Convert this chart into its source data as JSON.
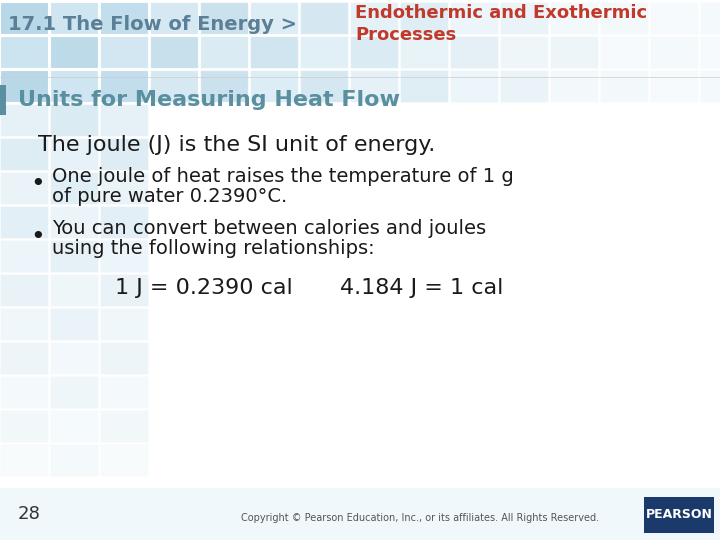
{
  "bg_color": "#ffffff",
  "header_grid_color": "#b8d8e8",
  "header_grid_color2": "#cce4f0",
  "header_left_text": "17.1 The Flow of Energy >",
  "header_left_color": "#5a7f96",
  "header_right_line1": "Endothermic and Exothermic",
  "header_right_line2": "Processes",
  "header_right_color": "#c0392b",
  "section_title": "Units for Measuring Heat Flow",
  "section_title_color": "#5a8fa0",
  "main_text": "The joule (J) is the SI unit of energy.",
  "main_text_color": "#1a1a1a",
  "bullet1_line1": "One joule of heat raises the temperature of 1 g",
  "bullet1_line2": "of pure water 0.2390°C.",
  "bullet2_line1": "You can convert between calories and joules",
  "bullet2_line2": "using the following relationships:",
  "formula1": "1 J = 0.2390 cal",
  "formula2": "4.184 J = 1 cal",
  "bullet_color": "#1a1a1a",
  "page_num": "28",
  "copyright_text": "Copyright © Pearson Education, Inc., or its affiliates. All Rights Reserved.",
  "pearson_bg": "#1a3a6b",
  "pearson_text": "PEARSON",
  "left_bar_color": "#5a8fa0"
}
